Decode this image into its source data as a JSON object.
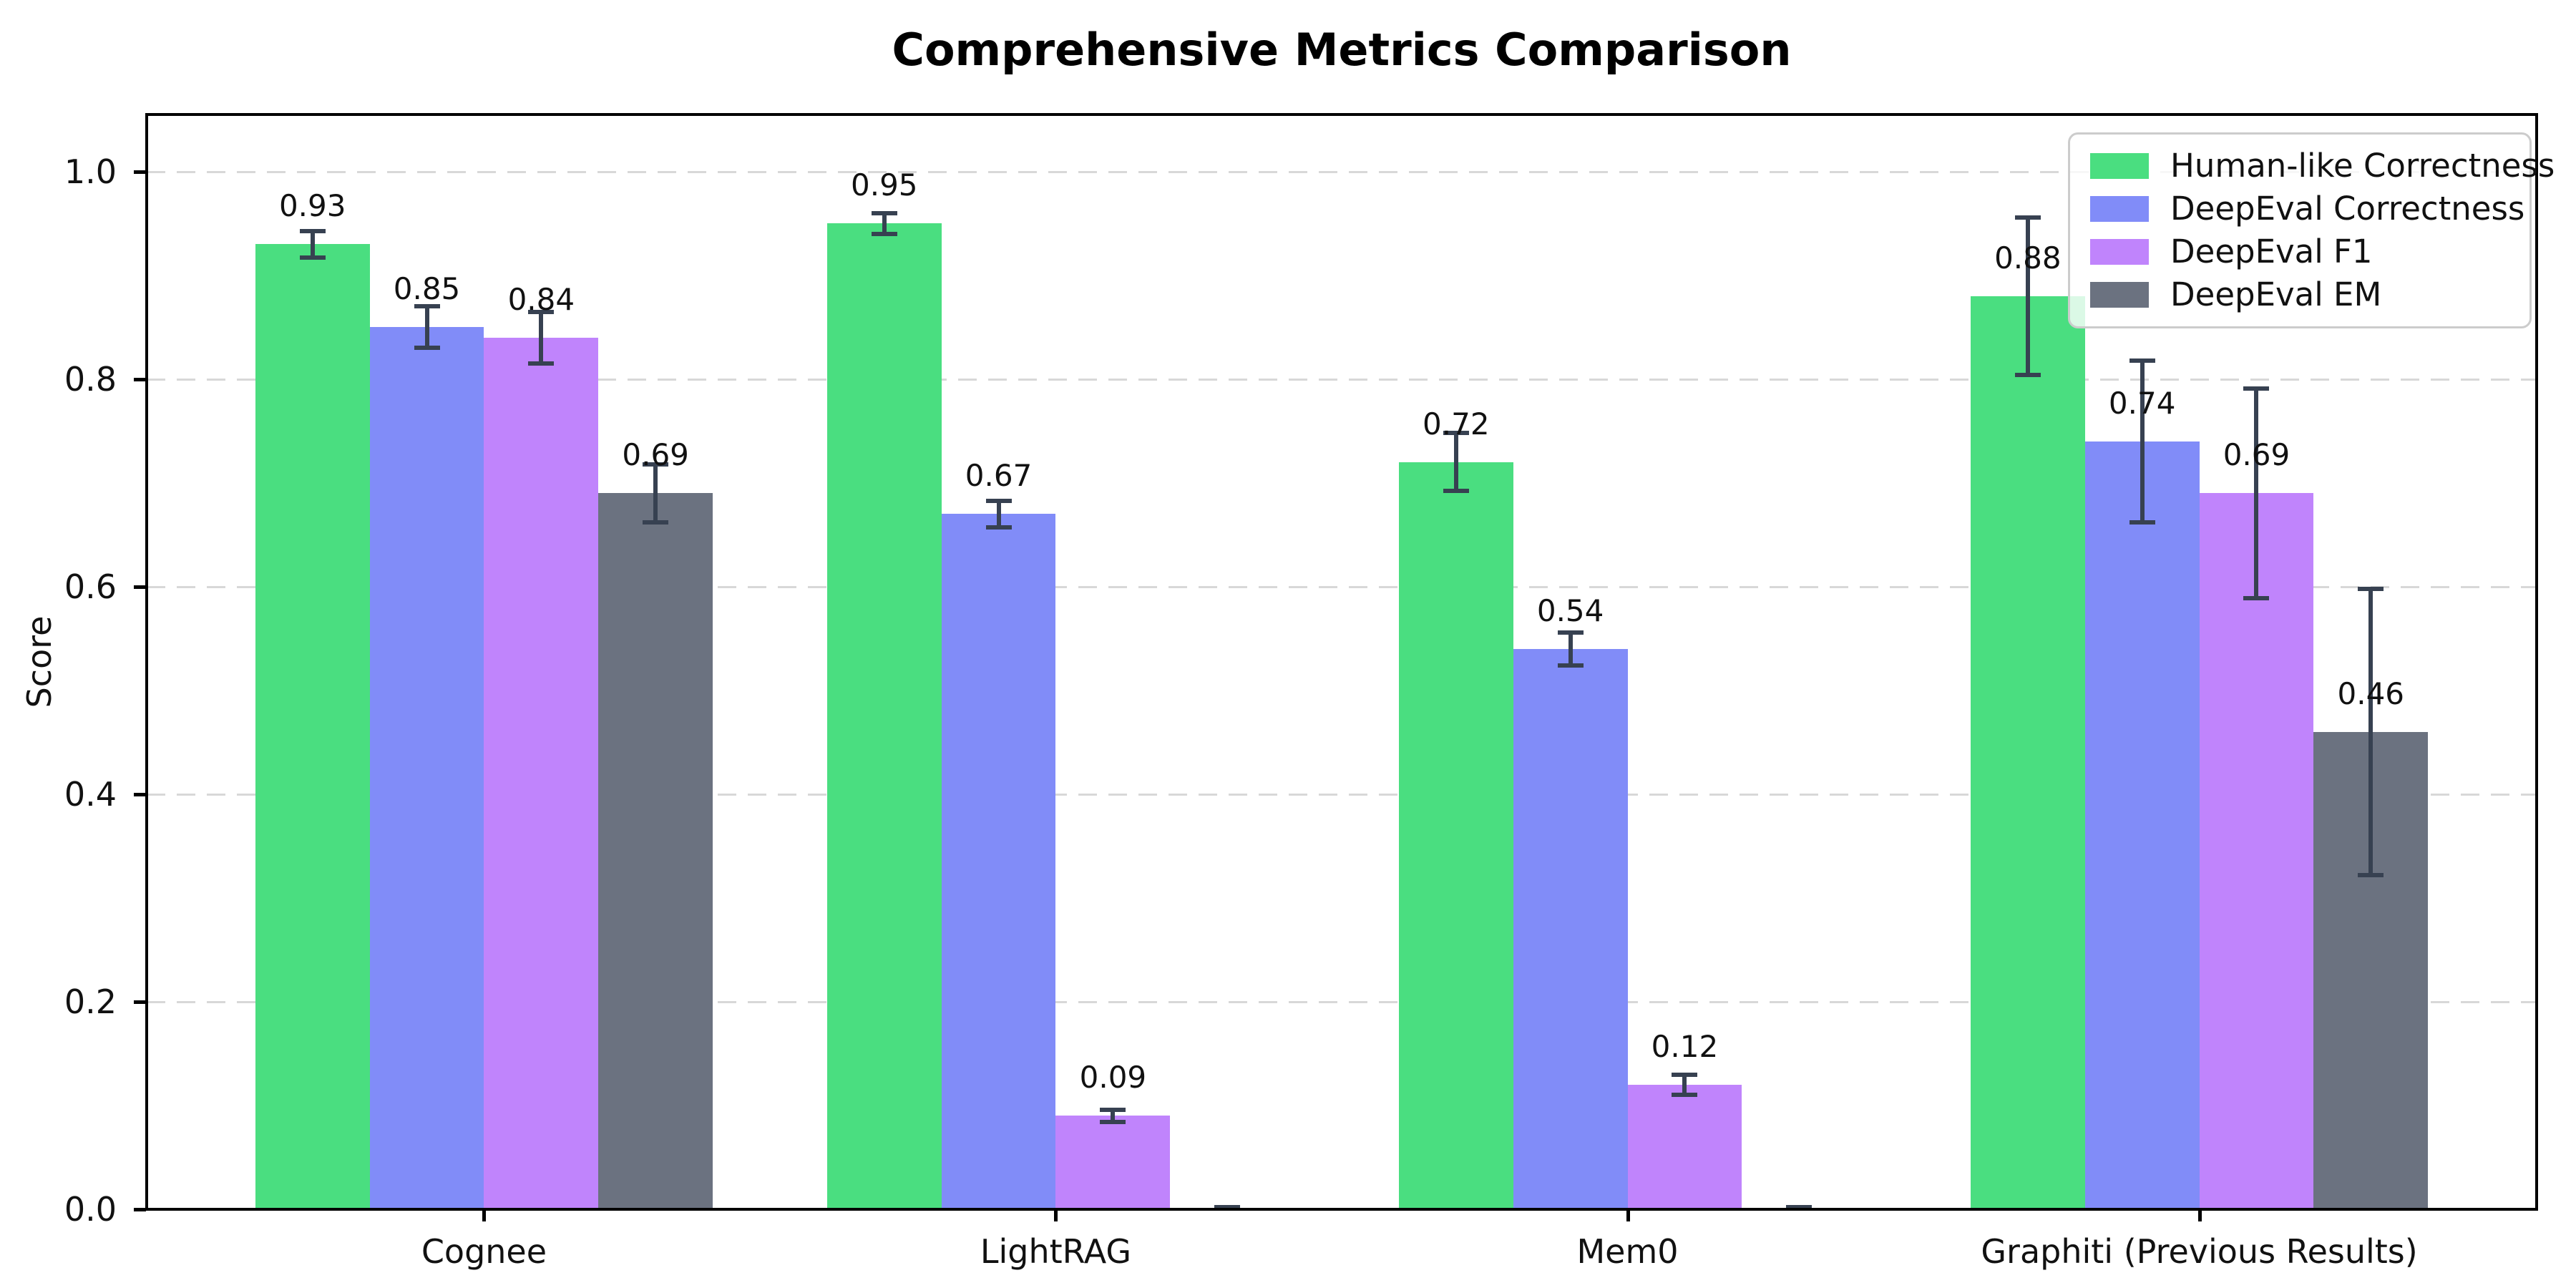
{
  "chart_data": {
    "type": "bar",
    "title": "Comprehensive Metrics Comparison",
    "ylabel": "Score",
    "xlabel": "",
    "categories": [
      "Cognee",
      "LightRAG",
      "Mem0",
      "Graphiti (Previous Results)"
    ],
    "series": [
      {
        "name": "Human-like Correctness",
        "color": "#4ade80",
        "values": [
          0.93,
          0.95,
          0.72,
          0.88
        ],
        "errors": [
          0.015,
          0.012,
          0.03,
          0.078
        ],
        "labels": [
          "0.93",
          "0.95",
          "0.72",
          "0.88"
        ]
      },
      {
        "name": "DeepEval Correctness",
        "color": "#818cf8",
        "values": [
          0.85,
          0.67,
          0.54,
          0.74
        ],
        "errors": [
          0.022,
          0.015,
          0.018,
          0.08
        ],
        "labels": [
          "0.85",
          "0.67",
          "0.54",
          "0.74"
        ]
      },
      {
        "name": "DeepEval F1",
        "color": "#c084fc",
        "values": [
          0.84,
          0.09,
          0.12,
          0.69
        ],
        "errors": [
          0.027,
          0.008,
          0.012,
          0.103
        ],
        "labels": [
          "0.84",
          "0.09",
          "0.12",
          "0.69"
        ]
      },
      {
        "name": "DeepEval EM",
        "color": "#6b7280",
        "values": [
          0.69,
          0.0,
          0.0,
          0.46
        ],
        "errors": [
          0.03,
          0.004,
          0.004,
          0.14
        ],
        "labels": [
          "0.69",
          null,
          null,
          "0.46"
        ]
      }
    ],
    "yticks": [
      {
        "value": 0.0,
        "label": "0.0"
      },
      {
        "value": 0.2,
        "label": "0.2"
      },
      {
        "value": 0.4,
        "label": "0.4"
      },
      {
        "value": 0.6,
        "label": "0.6"
      },
      {
        "value": 0.8,
        "label": "0.8"
      },
      {
        "value": 1.0,
        "label": "1.0"
      }
    ],
    "ylim": [
      0,
      1.055
    ],
    "grid": "horizontal-dashed",
    "legend_position": "upper-right",
    "error_bar_color": "#374151"
  }
}
